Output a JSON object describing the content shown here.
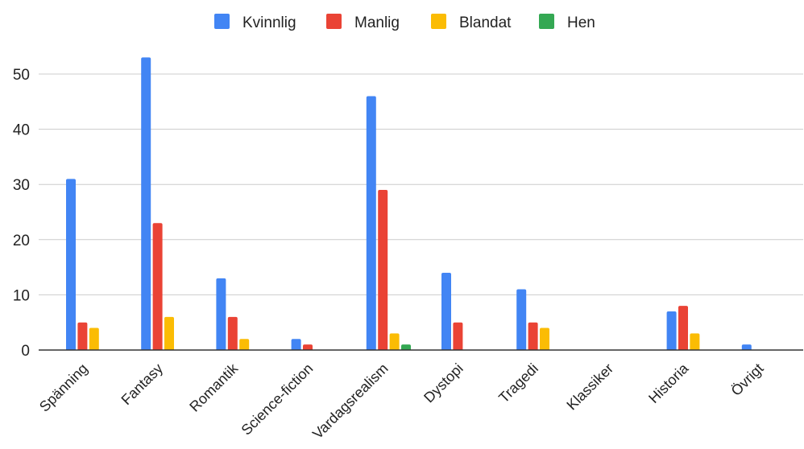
{
  "chart_data": {
    "type": "bar",
    "title": "",
    "xlabel": "",
    "ylabel": "",
    "ylim": [
      0,
      55
    ],
    "yticks": [
      0,
      10,
      20,
      30,
      40,
      50
    ],
    "grid": true,
    "legend_position": "top",
    "categories": [
      "Spänning",
      "Fantasy",
      "Romantik",
      "Science-fiction",
      "Vardagsrealism",
      "Dystopi",
      "Tragedi",
      "Klassiker",
      "Historia",
      "Övrigt"
    ],
    "series": [
      {
        "name": "Kvinnlig",
        "color": "#4285f4",
        "values": [
          31,
          53,
          13,
          2,
          46,
          14,
          11,
          0,
          7,
          1
        ]
      },
      {
        "name": "Manlig",
        "color": "#ea4335",
        "values": [
          5,
          23,
          6,
          1,
          29,
          5,
          5,
          0,
          8,
          0
        ]
      },
      {
        "name": "Blandat",
        "color": "#fbbc04",
        "values": [
          4,
          6,
          2,
          0,
          3,
          0,
          4,
          0,
          3,
          0
        ]
      },
      {
        "name": "Hen",
        "color": "#34a853",
        "values": [
          0,
          0,
          0,
          0,
          1,
          0,
          0,
          0,
          0,
          0
        ]
      }
    ]
  }
}
